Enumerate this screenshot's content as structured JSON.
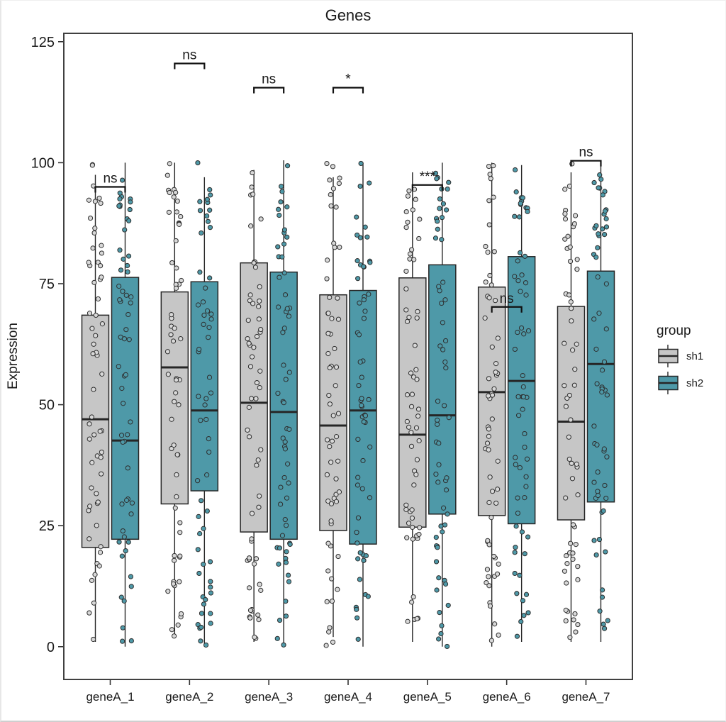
{
  "chart_data": {
    "type": "boxplot",
    "title": "Genes",
    "ylabel": "Expression",
    "xlabel": "",
    "categories": [
      "geneA_1",
      "geneA_2",
      "geneA_3",
      "geneA_4",
      "geneA_5",
      "geneA_6",
      "geneA_7"
    ],
    "yticks": [
      0,
      25,
      50,
      75,
      100,
      125
    ],
    "ylim": [
      -7,
      127
    ],
    "grid": false,
    "legend": {
      "title": "group",
      "position": "right",
      "items": [
        {
          "label": "sh1",
          "fill": "#c6c6c6"
        },
        {
          "label": "sh2",
          "fill": "#4e99a8"
        }
      ]
    },
    "series": [
      {
        "name": "sh1",
        "fill": "#c6c6c6",
        "point_fill": "#d8d8d8",
        "boxes": [
          {
            "min": 1,
            "q1": 20.5,
            "median": 47.0,
            "q3": 68.5,
            "max": 97.5
          },
          {
            "min": 2,
            "q1": 29.5,
            "median": 57.7,
            "q3": 73.3,
            "max": 100
          },
          {
            "min": 1,
            "q1": 23.7,
            "median": 50.4,
            "q3": 79.3,
            "max": 98.5
          },
          {
            "min": 2,
            "q1": 24.0,
            "median": 45.7,
            "q3": 72.7,
            "max": 97
          },
          {
            "min": 1,
            "q1": 24.7,
            "median": 43.8,
            "q3": 76.2,
            "max": 98
          },
          {
            "min": 0,
            "q1": 27.1,
            "median": 52.6,
            "q3": 74.3,
            "max": 100
          },
          {
            "min": 1,
            "q1": 26.2,
            "median": 46.5,
            "q3": 70.3,
            "max": 98
          }
        ]
      },
      {
        "name": "sh2",
        "fill": "#4e99a8",
        "point_fill": "#4e99a8",
        "boxes": [
          {
            "min": 0,
            "q1": 22.2,
            "median": 42.6,
            "q3": 76.3,
            "max": 100
          },
          {
            "min": 0,
            "q1": 32.2,
            "median": 48.8,
            "q3": 75.4,
            "max": 97
          },
          {
            "min": 0,
            "q1": 22.2,
            "median": 48.5,
            "q3": 77.4,
            "max": 100.5
          },
          {
            "min": 0,
            "q1": 21.2,
            "median": 48.8,
            "q3": 73.6,
            "max": 100
          },
          {
            "min": 0,
            "q1": 27.4,
            "median": 47.8,
            "q3": 78.9,
            "max": 100
          },
          {
            "min": 1,
            "q1": 25.4,
            "median": 54.9,
            "q3": 80.6,
            "max": 99.5
          },
          {
            "min": 1,
            "q1": 29.9,
            "median": 58.4,
            "q3": 77.6,
            "max": 99.5
          }
        ]
      }
    ],
    "significance": [
      {
        "category": "geneA_1",
        "label": "ns",
        "bracket_y": 95.0
      },
      {
        "category": "geneA_2",
        "label": "ns",
        "bracket_y": 120.5
      },
      {
        "category": "geneA_3",
        "label": "ns",
        "bracket_y": 115.5
      },
      {
        "category": "geneA_4",
        "label": "*",
        "bracket_y": 115.5
      },
      {
        "category": "geneA_5",
        "label": "***",
        "bracket_y": 95.4
      },
      {
        "category": "geneA_6",
        "label": "ns",
        "bracket_y": 70.2
      },
      {
        "category": "geneA_7",
        "label": "ns",
        "bracket_y": 100.4
      }
    ],
    "jitter": {
      "points_per_box": 60,
      "seed": 11,
      "value_range": [
        0,
        100
      ]
    }
  },
  "style_colors": {
    "box_stroke": "#262626",
    "panel_border": "#404040",
    "tick_color": "#333333",
    "bracket_color": "#111111",
    "point_stroke": "#2e2e2e"
  }
}
